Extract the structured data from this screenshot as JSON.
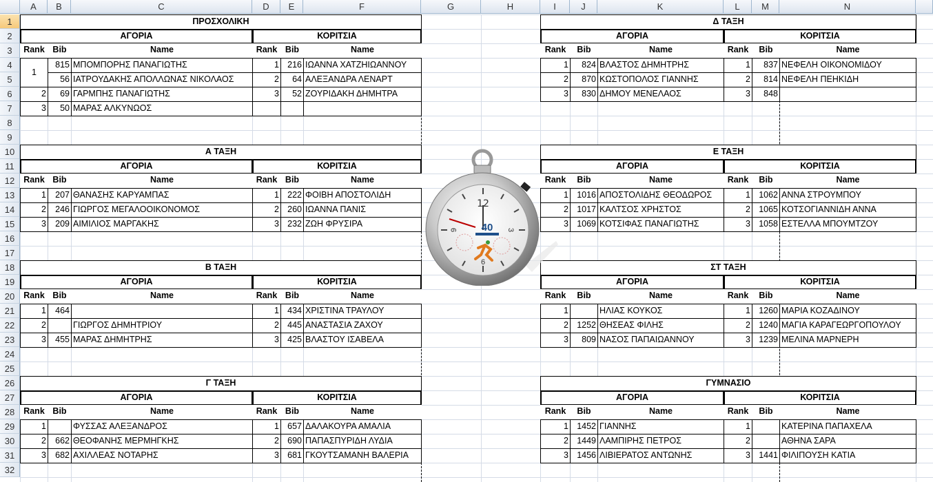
{
  "sheet": {
    "columns": [
      "A",
      "B",
      "C",
      "D",
      "E",
      "F",
      "G",
      "H",
      "I",
      "J",
      "K",
      "L",
      "M",
      "N"
    ],
    "rows": [
      "1",
      "2",
      "3",
      "4",
      "5",
      "6",
      "7",
      "8",
      "9",
      "10",
      "11",
      "12",
      "13",
      "14",
      "15",
      "16",
      "17",
      "18",
      "19",
      "20",
      "21",
      "22",
      "23",
      "24",
      "25",
      "26",
      "27",
      "28",
      "29",
      "30",
      "31",
      "32"
    ]
  },
  "labels": {
    "boys": "ΑΓΟΡΙΑ",
    "girls": "ΚΟΡΙΤΣΙΑ",
    "rank": "Rank",
    "bib": "Bib",
    "name": "Name"
  },
  "tables": [
    {
      "title": "ΠΡΟΣΧΟΛΙΚΗ",
      "boys": [
        {
          "rank": "1",
          "bib": "815",
          "name": "ΜΠΟΜΠΟΡΗΣ ΠΑΝΑΓΙΩΤΗΣ"
        },
        {
          "rank": "",
          "bib": "56",
          "name": "ΙΑΤΡΟΥΔΑΚΗΣ ΑΠΟΛΛΩΝΑΣ ΝΙΚΟΛΑΟΣ"
        },
        {
          "rank": "2",
          "bib": "69",
          "name": "ΓΑΡΜΠΗΣ ΠΑΝΑΓΙΩΤΗΣ"
        },
        {
          "rank": "3",
          "bib": "50",
          "name": "ΜΑΡΑΣ ΑΛΚΥΝΩΟΣ"
        }
      ],
      "girls": [
        {
          "rank": "1",
          "bib": "216",
          "name": "ΙΩΑΝΝΑ ΧΑΤΖΗΙΩΑΝΝΟΥ"
        },
        {
          "rank": "2",
          "bib": "64",
          "name": "ΑΛΕΞΑΝΔΡΑ ΛΕΝΑΡΤ"
        },
        {
          "rank": "3",
          "bib": "52",
          "name": "ΖΟΥΡΙΔΑΚΗ ΔΗΜΗΤΡΑ"
        }
      ]
    },
    {
      "title": "Α ΤΑΞΗ",
      "boys": [
        {
          "rank": "1",
          "bib": "207",
          "name": "ΘΑΝΑΣΗΣ ΚΑΡΥΑΜΠΑΣ"
        },
        {
          "rank": "2",
          "bib": "246",
          "name": "ΓΙΩΡΓΟΣ ΜΕΓΑΛΟΟΙΚΟΝΟΜΟΣ"
        },
        {
          "rank": "3",
          "bib": "209",
          "name": "ΑΙΜΙΛΙΟΣ ΜΑΡΓΑΚΗΣ"
        }
      ],
      "girls": [
        {
          "rank": "1",
          "bib": "222",
          "name": "ΦΟΙΒΗ ΑΠΟΣΤΟΛΙΔΗ"
        },
        {
          "rank": "2",
          "bib": "260",
          "name": "ΙΩΑΝΝΑ ΠΑΝΙΣ"
        },
        {
          "rank": "3",
          "bib": "232",
          "name": "ΖΩΗ ΦΡΥΣΙΡΑ"
        }
      ]
    },
    {
      "title": "Β ΤΑΞΗ",
      "boys": [
        {
          "rank": "1",
          "bib": "464",
          "name": ""
        },
        {
          "rank": "2",
          "bib": "",
          "name": "ΓΙΩΡΓΟΣ ΔΗΜΗΤΡΙΟΥ"
        },
        {
          "rank": "3",
          "bib": "455",
          "name": "ΜΑΡΑΣ ΔΗΜΗΤΡΗΣ"
        }
      ],
      "girls": [
        {
          "rank": "1",
          "bib": "434",
          "name": "ΧΡΙΣΤΙΝΑ ΤΡΑΥΛΟΥ"
        },
        {
          "rank": "2",
          "bib": "445",
          "name": "ΑΝΑΣΤΑΣΙΑ ΖΑΧΟΥ"
        },
        {
          "rank": "3",
          "bib": "425",
          "name": "ΒΛΑΣΤΟΥ ΙΣΑΒΕΛΑ"
        }
      ]
    },
    {
      "title": "Γ ΤΑΞΗ",
      "boys": [
        {
          "rank": "1",
          "bib": "",
          "name": "ΦΥΣΣΑΣ ΑΛΕΞΑΝΔΡΟΣ"
        },
        {
          "rank": "2",
          "bib": "662",
          "name": "ΘΕΟΦΑΝΗΣ ΜΕΡΜΗΓΚΗΣ"
        },
        {
          "rank": "3",
          "bib": "682",
          "name": "ΑΧΙΛΛΕΑΣ ΝΟΤΑΡΗΣ"
        }
      ],
      "girls": [
        {
          "rank": "1",
          "bib": "657",
          "name": "ΔΑΛΑΚΟΥΡΑ ΑΜΑΛΙΑ"
        },
        {
          "rank": "2",
          "bib": "690",
          "name": "ΠΑΠΑΣΠΥΡΙΔΗ ΛΥΔΙΑ"
        },
        {
          "rank": "3",
          "bib": "681",
          "name": "ΓΚΟΥΤΣΑΜΑΝΗ ΒΑΛΕΡΙΑ"
        }
      ]
    },
    {
      "title": "Δ ΤΑΞΗ",
      "boys": [
        {
          "rank": "1",
          "bib": "824",
          "name": "ΒΛΑΣΤΟΣ ΔΗΜΗΤΡΗΣ"
        },
        {
          "rank": "2",
          "bib": "870",
          "name": "ΚΩΣΤΟΠΟΛΟΣ  ΓΙΑΝΝΗΣ"
        },
        {
          "rank": "3",
          "bib": "830",
          "name": "ΔΗΜΟΥ ΜΕΝΕΛΑΟΣ"
        }
      ],
      "girls": [
        {
          "rank": "1",
          "bib": "837",
          "name": "ΝΕΦΕΛΗ ΟΙΚΟΝΟΜΙΔΟΥ"
        },
        {
          "rank": "2",
          "bib": "814",
          "name": "ΝΕΦΕΛΗ ΠΕΗΚΙΔΗ"
        },
        {
          "rank": "3",
          "bib": "848",
          "name": ""
        }
      ]
    },
    {
      "title": "Ε ΤΑΞΗ",
      "boys": [
        {
          "rank": "1",
          "bib": "1016",
          "name": "ΑΠΟΣΤΟΛΙΔΗΣ ΘΕΟΔΩΡΟΣ"
        },
        {
          "rank": "2",
          "bib": "1017",
          "name": "ΚΑΛΤΣΟΣ ΧΡΗΣΤΟΣ"
        },
        {
          "rank": "3",
          "bib": "1069",
          "name": "ΚΟΤΣΙΦΑΣ ΠΑΝΑΓΙΩΤΗΣ"
        }
      ],
      "girls": [
        {
          "rank": "1",
          "bib": "1062",
          "name": "ΑΝΝΑ ΣΤΡΟΥΜΠΟΥ"
        },
        {
          "rank": "2",
          "bib": "1065",
          "name": "ΚΟΤΣΟΓΙΑΝΝΙΔΗ ΑΝΝΑ"
        },
        {
          "rank": "3",
          "bib": "1058",
          "name": "ΕΣΤΕΛΛΑ ΜΠΟΥΜΤΖΟΥ"
        }
      ]
    },
    {
      "title": "ΣΤ ΤΑΞΗ",
      "boys": [
        {
          "rank": "1",
          "bib": "",
          "name": "ΗΛΙΑΣ ΚΟΥΚΟΣ"
        },
        {
          "rank": "2",
          "bib": "1252",
          "name": "ΘΗΣΕΑΣ ΦΙΛΗΣ"
        },
        {
          "rank": "3",
          "bib": "809",
          "name": "ΝΑΣΟΣ ΠΑΠΑΙΩΑΝΝΟΥ"
        }
      ],
      "girls": [
        {
          "rank": "1",
          "bib": "1260",
          "name": "ΜΑΡΙΑ ΚΟΖΑΔΙΝΟΥ"
        },
        {
          "rank": "2",
          "bib": "1240",
          "name": "ΜΑΓΙΑ ΚΑΡΑΓΕΩΡΓΟΠΟΥΛΟΥ"
        },
        {
          "rank": "3",
          "bib": "1239",
          "name": "ΜΕΛΙΝΑ ΜΑΡΝΕΡΗ"
        }
      ]
    },
    {
      "title": "ΓΥΜΝΑΣΙΟ",
      "boys": [
        {
          "rank": "1",
          "bib": "1452",
          "name": "ΓΙΑΝΝΗΣ"
        },
        {
          "rank": "2",
          "bib": "1449",
          "name": "ΛΑΜΠΙΡΗΣ ΠΕΤΡΟΣ"
        },
        {
          "rank": "3",
          "bib": "1456",
          "name": "ΛΙΒΙΕΡΑΤΟΣ ΑΝΤΩΝΗΣ"
        }
      ],
      "girls": [
        {
          "rank": "1",
          "bib": "",
          "name": "ΚΑΤΕΡΙΝΑ ΠΑΠΑΧΕΛΑ"
        },
        {
          "rank": "2",
          "bib": "",
          "name": "ΑΘΗΝΑ ΣΑΡΑ"
        },
        {
          "rank": "3",
          "bib": "1441",
          "name": "ΦΙΛΙΠΟΥΣΗ ΚΑΤΙΑ"
        }
      ]
    }
  ],
  "image": {
    "icon": "stopwatch-icon",
    "dial": {
      "n12": "12",
      "n3": "3",
      "n6": "6",
      "n9": "9"
    },
    "logo_text": "40"
  }
}
